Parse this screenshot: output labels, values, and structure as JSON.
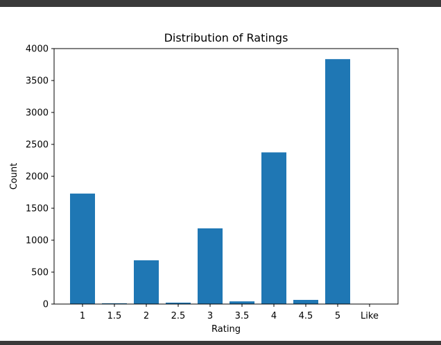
{
  "chart_data": {
    "type": "bar",
    "title": "Distribution of Ratings",
    "xlabel": "Rating",
    "ylabel": "Count",
    "categories": [
      "1",
      "1.5",
      "2",
      "2.5",
      "3",
      "3.5",
      "4",
      "4.5",
      "5",
      "Like"
    ],
    "values": [
      1730,
      12,
      685,
      22,
      1185,
      42,
      2375,
      65,
      3835,
      0
    ],
    "ylim": [
      0,
      4000
    ],
    "yticks": [
      0,
      500,
      1000,
      1500,
      2000,
      2500,
      3000,
      3500,
      4000
    ],
    "bar_color": "#1f77b4",
    "grid": false
  }
}
